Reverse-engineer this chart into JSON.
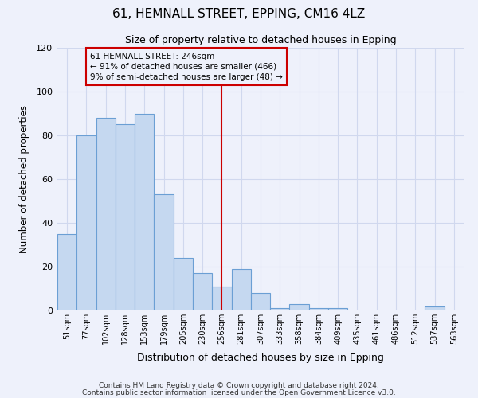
{
  "title": "61, HEMNALL STREET, EPPING, CM16 4LZ",
  "subtitle": "Size of property relative to detached houses in Epping",
  "xlabel": "Distribution of detached houses by size in Epping",
  "ylabel": "Number of detached properties",
  "bin_labels": [
    "51sqm",
    "77sqm",
    "102sqm",
    "128sqm",
    "153sqm",
    "179sqm",
    "205sqm",
    "230sqm",
    "256sqm",
    "281sqm",
    "307sqm",
    "333sqm",
    "358sqm",
    "384sqm",
    "409sqm",
    "435sqm",
    "461sqm",
    "486sqm",
    "512sqm",
    "537sqm",
    "563sqm"
  ],
  "bar_values": [
    35,
    80,
    88,
    85,
    90,
    53,
    24,
    17,
    11,
    19,
    8,
    1,
    3,
    1,
    1,
    0,
    0,
    0,
    0,
    2,
    0
  ],
  "bar_color": "#c5d8f0",
  "bar_edge_color": "#6b9fd4",
  "vline_x": 8,
  "vline_color": "#cc0000",
  "annotation_text": "61 HEMNALL STREET: 246sqm\n← 91% of detached houses are smaller (466)\n9% of semi-detached houses are larger (48) →",
  "annotation_box_color": "#cc0000",
  "ylim": [
    0,
    120
  ],
  "yticks": [
    0,
    20,
    40,
    60,
    80,
    100,
    120
  ],
  "footer1": "Contains HM Land Registry data © Crown copyright and database right 2024.",
  "footer2": "Contains public sector information licensed under the Open Government Licence v3.0.",
  "bg_color": "#eef1fb",
  "grid_color": "#d0d8ee"
}
